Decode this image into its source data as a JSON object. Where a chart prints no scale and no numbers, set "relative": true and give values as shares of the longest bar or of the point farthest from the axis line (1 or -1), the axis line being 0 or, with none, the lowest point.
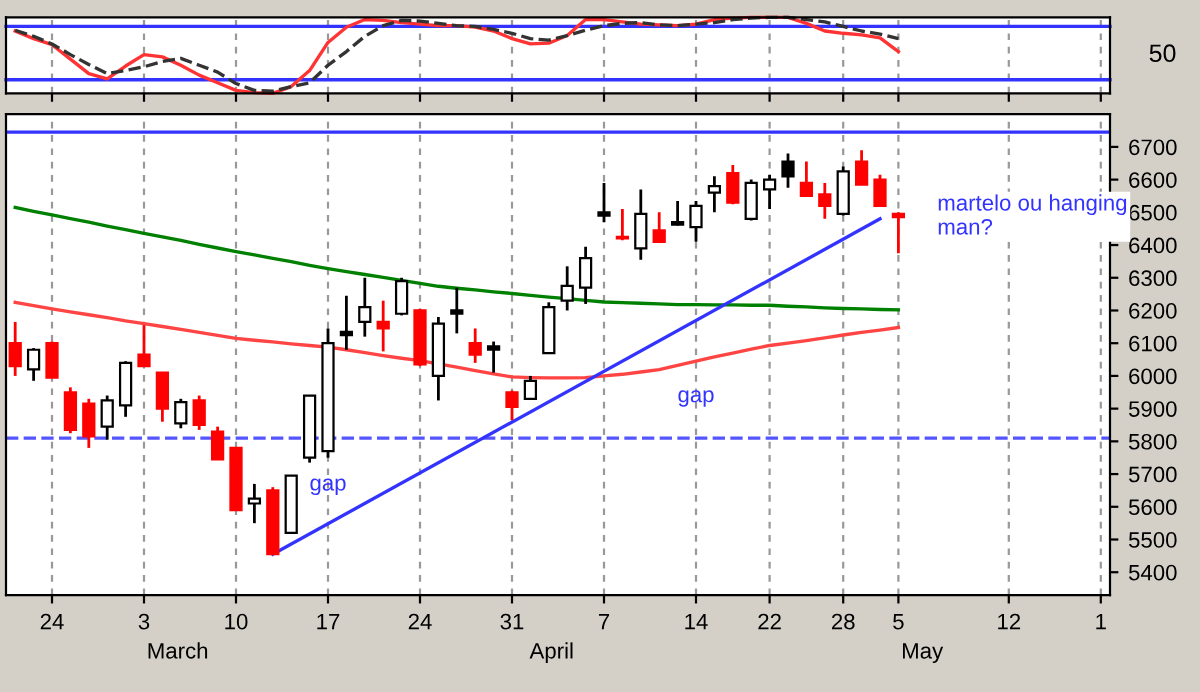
{
  "chart_data": [
    {
      "type": "line",
      "relative": true,
      "grid": "x",
      "tick_labels": false,
      "categories": [
        null,
        null,
        "24",
        null,
        null,
        null,
        null,
        "3",
        null,
        null,
        null,
        null,
        "10",
        null,
        null,
        null,
        null,
        "17",
        null,
        null,
        null,
        null,
        "24",
        null,
        null,
        null,
        null,
        "31",
        null,
        null,
        null,
        null,
        "7",
        null,
        null,
        null,
        null,
        "14",
        null,
        null,
        null,
        "22",
        null,
        null,
        null,
        "28",
        null,
        null,
        "5",
        null,
        null,
        null,
        null,
        null,
        "12",
        null,
        null,
        null,
        null,
        "1"
      ],
      "series": [
        {
          "color": "#ff3333",
          "line_style": "solid",
          "values": [
            0.82,
            0.72,
            0.64,
            0.45,
            0.26,
            0.19,
            0.36,
            0.51,
            0.48,
            0.37,
            0.24,
            0.14,
            0.04,
            0.01,
            0,
            0.09,
            0.3,
            0.67,
            0.87,
            0.97,
            0.96,
            0.93,
            0.91,
            0.89,
            0.89,
            0.87,
            0.82,
            0.72,
            0.65,
            0.66,
            0.76,
            0.97,
            0.97,
            0.94,
            0.91,
            0.9,
            0.89,
            0.91,
            0.97,
            0.99,
            1,
            1,
            1,
            0.92,
            0.82,
            0.79,
            0.77,
            0.73,
            0.55,
            null,
            null,
            null,
            null,
            null,
            null,
            null,
            null,
            null,
            null,
            null
          ]
        },
        {
          "color": "#333333",
          "line_style": "dashed",
          "values": [
            0.83,
            0.75,
            0.65,
            0.51,
            0.38,
            0.26,
            0.3,
            0.35,
            0.42,
            0.46,
            0.37,
            0.28,
            0.13,
            0.04,
            0.03,
            0.09,
            0.14,
            0.37,
            0.55,
            0.75,
            0.89,
            0.96,
            0.95,
            0.92,
            0.89,
            0.88,
            0.84,
            0.79,
            0.72,
            0.7,
            0.76,
            0.83,
            0.89,
            0.92,
            0.93,
            0.9,
            0.89,
            0.91,
            0.93,
            0.97,
            0.99,
            1,
            1,
            0.97,
            0.94,
            0.88,
            0.82,
            0.78,
            0.72,
            null,
            null,
            null,
            null,
            null,
            null,
            null,
            null,
            null,
            null,
            null
          ]
        }
      ],
      "ref_lines": [
        {
          "axis": "y",
          "value": 0.88,
          "color": "#3333ff"
        },
        {
          "axis": "y",
          "value": 0.18,
          "color": "#3333ff"
        }
      ],
      "annotations": [
        "50"
      ]
    },
    {
      "type": "candlestick",
      "grid": "x",
      "categories": [
        null,
        null,
        "24",
        null,
        null,
        null,
        null,
        "3",
        null,
        null,
        null,
        null,
        "10",
        null,
        null,
        null,
        null,
        "17",
        null,
        null,
        null,
        null,
        "24",
        null,
        null,
        null,
        null,
        "31",
        null,
        null,
        null,
        null,
        "7",
        null,
        null,
        null,
        null,
        "14",
        null,
        null,
        null,
        "22",
        null,
        null,
        null,
        "28",
        null,
        null,
        "5",
        null,
        null,
        null,
        null,
        null,
        "12",
        null,
        null,
        null,
        null,
        "1"
      ],
      "ohlc": [
        [
          6100,
          6165,
          6000,
          6030
        ],
        [
          6020,
          6085,
          5985,
          6080
        ],
        [
          6100,
          6105,
          5994,
          5995
        ],
        [
          5950,
          5965,
          5825,
          5835
        ],
        [
          5915,
          5930,
          5780,
          5815
        ],
        [
          5845,
          5940,
          5805,
          5925
        ],
        [
          5910,
          6045,
          5875,
          6040
        ],
        [
          6065,
          6155,
          6030,
          6030
        ],
        [
          6010,
          6010,
          5860,
          5900
        ],
        [
          5855,
          5930,
          5840,
          5920
        ],
        [
          5925,
          5940,
          5835,
          5850
        ],
        [
          5830,
          5845,
          5745,
          5745
        ],
        [
          5780,
          5780,
          5590,
          5590
        ],
        [
          5610,
          5670,
          5550,
          5625
        ],
        [
          5650,
          5660,
          5455,
          5455
        ],
        [
          5520,
          5695,
          5520,
          5695
        ],
        [
          5750,
          5940,
          5735,
          5940
        ],
        [
          5770,
          6145,
          5750,
          6100
        ],
        [
          6125,
          6245,
          6080,
          6135
        ],
        [
          6165,
          6300,
          6120,
          6210
        ],
        [
          6165,
          6230,
          6075,
          6145
        ],
        [
          6190,
          6300,
          6185,
          6290
        ],
        [
          6200,
          6205,
          6030,
          6035
        ],
        [
          6000,
          6180,
          5925,
          6160
        ],
        [
          6190,
          6270,
          6130,
          6200
        ],
        [
          6100,
          6145,
          6040,
          6065
        ],
        [
          6080,
          6105,
          6010,
          6090
        ],
        [
          5950,
          5955,
          5865,
          5905
        ],
        [
          5930,
          6000,
          5930,
          5985
        ],
        [
          6070,
          6225,
          6070,
          6210
        ],
        [
          6230,
          6335,
          6200,
          6275
        ],
        [
          6270,
          6395,
          6220,
          6360
        ],
        [
          6490,
          6590,
          6470,
          6500
        ],
        [
          6425,
          6510,
          6415,
          6420
        ],
        [
          6390,
          6570,
          6355,
          6495
        ],
        [
          6445,
          6500,
          6410,
          6410
        ],
        [
          6462,
          6535,
          6460,
          6470
        ],
        [
          6455,
          6535,
          6410,
          6520
        ],
        [
          6560,
          6610,
          6500,
          6580
        ],
        [
          6620,
          6645,
          6525,
          6530
        ],
        [
          6480,
          6600,
          6475,
          6590
        ],
        [
          6570,
          6615,
          6510,
          6600
        ],
        [
          6655,
          6680,
          6575,
          6610
        ],
        [
          6590,
          6655,
          6550,
          6550
        ],
        [
          6555,
          6590,
          6480,
          6520
        ],
        [
          6495,
          6640,
          6490,
          6625
        ],
        [
          6655,
          6690,
          6585,
          6585
        ],
        [
          6600,
          6615,
          6520,
          6520
        ],
        [
          6495,
          6500,
          6375,
          6485
        ],
        null,
        null,
        null,
        null,
        null,
        null,
        null,
        null,
        null,
        null,
        null
      ],
      "colors": [
        "#ff0000",
        "#ffffff",
        "#ff0000",
        "#ff0000",
        "#ff0000",
        "#ffffff",
        "#ffffff",
        "#ff0000",
        "#ff0000",
        "#ffffff",
        "#ff0000",
        "#ff0000",
        "#ff0000",
        "#ffffff",
        "#ff0000",
        "#ffffff",
        "#ffffff",
        "#ffffff",
        "#000000",
        "#ffffff",
        "#ff0000",
        "#ffffff",
        "#ff0000",
        "#ffffff",
        "#000000",
        "#ff0000",
        "#000000",
        "#ff0000",
        "#ffffff",
        "#ffffff",
        "#ffffff",
        "#ffffff",
        "#000000",
        "#ff0000",
        "#ffffff",
        "#ff0000",
        "#000000",
        "#ffffff",
        "#ffffff",
        "#ff0000",
        "#ffffff",
        "#ffffff",
        "#000000",
        "#ff0000",
        "#ff0000",
        "#ffffff",
        "#ff0000",
        "#ff0000",
        "#ff0000",
        null,
        null,
        null,
        null,
        null,
        null,
        null,
        null,
        null,
        null,
        null
      ],
      "series": [
        {
          "type": "line",
          "color": "#008000",
          "values": [
            6515,
            6503,
            6492,
            6481,
            6470,
            6458,
            6447,
            6436,
            6425,
            6414,
            6402,
            6391,
            6380,
            6370,
            6359,
            6349,
            6338,
            6328,
            6319,
            6310,
            6301,
            6292,
            6283,
            6274,
            6268,
            6263,
            6257,
            6252,
            6246,
            6241,
            6236,
            6231,
            6226,
            6224,
            6222,
            6220,
            6218,
            6218,
            6217,
            6217,
            6216,
            6216,
            6213,
            6211,
            6208,
            6206,
            6205,
            6203,
            6202,
            null,
            null,
            null,
            null,
            null,
            null,
            null,
            null,
            null,
            null,
            null
          ]
        },
        {
          "type": "line",
          "color": "#ff4444",
          "values": [
            6225,
            6215,
            6205,
            6196,
            6187,
            6178,
            6168,
            6160,
            6151,
            6142,
            6133,
            6124,
            6115,
            6109,
            6104,
            6098,
            6093,
            6088,
            6080,
            6071,
            6062,
            6054,
            6047,
            6037,
            6027,
            6016,
            6006,
            5997,
            5995,
            5994,
            5994,
            5995,
            6000,
            6005,
            6012,
            6019,
            6032,
            6045,
            6058,
            6070,
            6082,
            6093,
            6100,
            6108,
            6116,
            6125,
            6133,
            6140,
            6148,
            null,
            null,
            null,
            null,
            null,
            null,
            null,
            null,
            null,
            null,
            null
          ]
        },
        {
          "type": "line",
          "color": "#3333ff",
          "values": [
            null,
            null,
            null,
            null,
            null,
            null,
            null,
            null,
            null,
            null,
            null,
            null,
            null,
            null,
            5455,
            null,
            null,
            null,
            null,
            null,
            null,
            null,
            null,
            null,
            null,
            null,
            null,
            null,
            null,
            null,
            null,
            null,
            null,
            null,
            null,
            null,
            null,
            null,
            null,
            null,
            null,
            null,
            null,
            null,
            null,
            null,
            null,
            6480,
            null,
            null,
            null,
            null,
            null,
            null,
            null,
            null,
            null,
            null,
            null,
            null
          ]
        }
      ],
      "ylim": [
        5330,
        6800
      ],
      "yticks": [
        5400,
        5500,
        5600,
        5700,
        5800,
        5900,
        6000,
        6100,
        6200,
        6300,
        6400,
        6500,
        6600,
        6700
      ],
      "ref_lines": [
        {
          "axis": "y",
          "value": 6745,
          "color": "#3333ff"
        },
        {
          "axis": "y",
          "value": 5810,
          "color": "#5555ff",
          "line_style": "dashed"
        }
      ],
      "annotations": [
        {
          "text": "gap",
          "x": "17",
          "y": 5750
        },
        {
          "text": "gap",
          "x": "14",
          "y": 6020
        },
        {
          "text": "martelo ou hanging man?",
          "x": "5",
          "y": 6470
        },
        "March",
        "April",
        "May"
      ]
    }
  ]
}
